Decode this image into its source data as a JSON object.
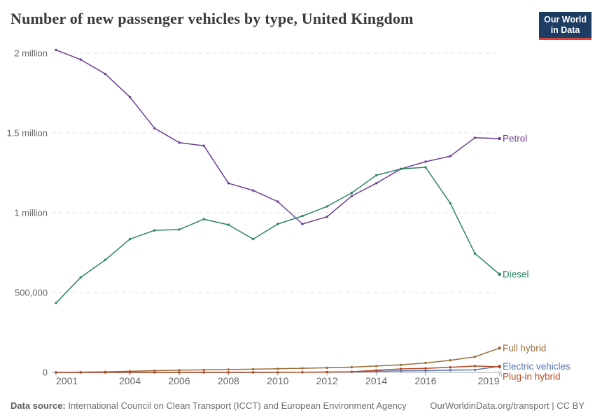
{
  "header": {
    "title": "Number of new passenger vehicles by type, United Kingdom",
    "logo": {
      "line1": "Our World",
      "line2": "in Data"
    }
  },
  "footer": {
    "source_label": "Data source:",
    "source_text": " International Council on Clean Transport (ICCT) and European Environment Agency",
    "link_text": "OurWorldinData.org/transport | CC BY"
  },
  "colors": {
    "petrol": "#6D3E91",
    "diesel": "#2C8465",
    "full_hybrid": "#996D39",
    "electric": "#5776B1",
    "plugin_hybrid": "#B54A23",
    "grid": "#dcdcdc",
    "axis": "#a3a3a3",
    "tick_text": "#666666",
    "logo_bg": "#1d3d63",
    "logo_accent": "#e0403a"
  },
  "chart_data": {
    "type": "line",
    "title": "Number of new passenger vehicles by type, United Kingdom",
    "xlabel": "",
    "ylabel": "",
    "ylim": [
      0,
      2000000
    ],
    "grid": "horizontal-dashed",
    "legend": "series-end-labels",
    "x": [
      2001,
      2002,
      2003,
      2004,
      2005,
      2006,
      2007,
      2008,
      2009,
      2010,
      2011,
      2012,
      2013,
      2014,
      2015,
      2016,
      2017,
      2018,
      2019
    ],
    "x_tick_labels": [
      2001,
      2004,
      2006,
      2008,
      2010,
      2012,
      2014,
      2016,
      2019
    ],
    "y_ticks": [
      {
        "value": 0,
        "label": "0"
      },
      {
        "value": 500000,
        "label": "500,000"
      },
      {
        "value": 1000000,
        "label": "1 million"
      },
      {
        "value": 1500000,
        "label": "1.5 million"
      },
      {
        "value": 2000000,
        "label": "2 million"
      }
    ],
    "series": [
      {
        "name": "Petrol",
        "color": "#6D3E91",
        "values": [
          2020000,
          1960000,
          1870000,
          1725000,
          1530000,
          1440000,
          1420000,
          1185000,
          1140000,
          1070000,
          930000,
          975000,
          1105000,
          1185000,
          1275000,
          1320000,
          1355000,
          1470000,
          1465000
        ]
      },
      {
        "name": "Diesel",
        "color": "#2C8465",
        "values": [
          435000,
          595000,
          705000,
          835000,
          890000,
          895000,
          960000,
          925000,
          835000,
          930000,
          980000,
          1040000,
          1125000,
          1235000,
          1275000,
          1285000,
          1060000,
          745000,
          615000
        ]
      },
      {
        "name": "Full hybrid",
        "color": "#996D39",
        "values": [
          500,
          1500,
          3500,
          7000,
          11000,
          14000,
          16000,
          18000,
          20000,
          23000,
          26000,
          29000,
          33000,
          40000,
          47000,
          59000,
          76000,
          98000,
          152000
        ]
      },
      {
        "name": "Electric vehicles",
        "color": "#5776B1",
        "values": [
          200,
          200,
          300,
          300,
          300,
          400,
          400,
          300,
          300,
          500,
          1200,
          2200,
          3600,
          7000,
          10000,
          11000,
          14000,
          16000,
          38000
        ]
      },
      {
        "name": "Plug-in hybrid",
        "color": "#B54A23",
        "values": [
          0,
          0,
          0,
          0,
          0,
          0,
          0,
          0,
          0,
          400,
          1100,
          1700,
          4000,
          13000,
          22000,
          25000,
          32000,
          40000,
          35000
        ]
      }
    ]
  }
}
